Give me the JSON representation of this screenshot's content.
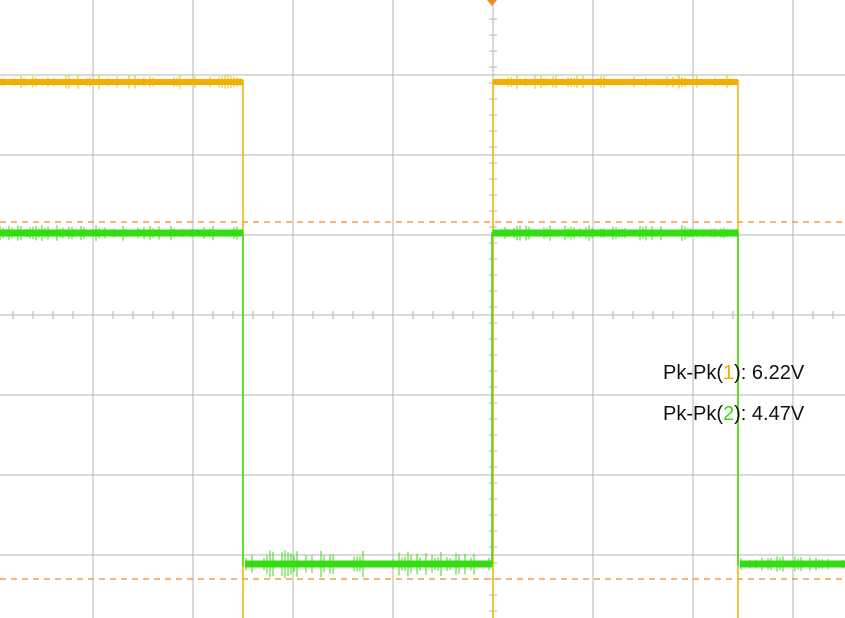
{
  "measurements": [
    {
      "label": "Pk-Pk(",
      "channel": "1",
      "close": "):",
      "value": "6.22V"
    },
    {
      "label": "Pk-Pk(",
      "channel": "2",
      "close": "):",
      "value": "4.47V"
    }
  ]
}
